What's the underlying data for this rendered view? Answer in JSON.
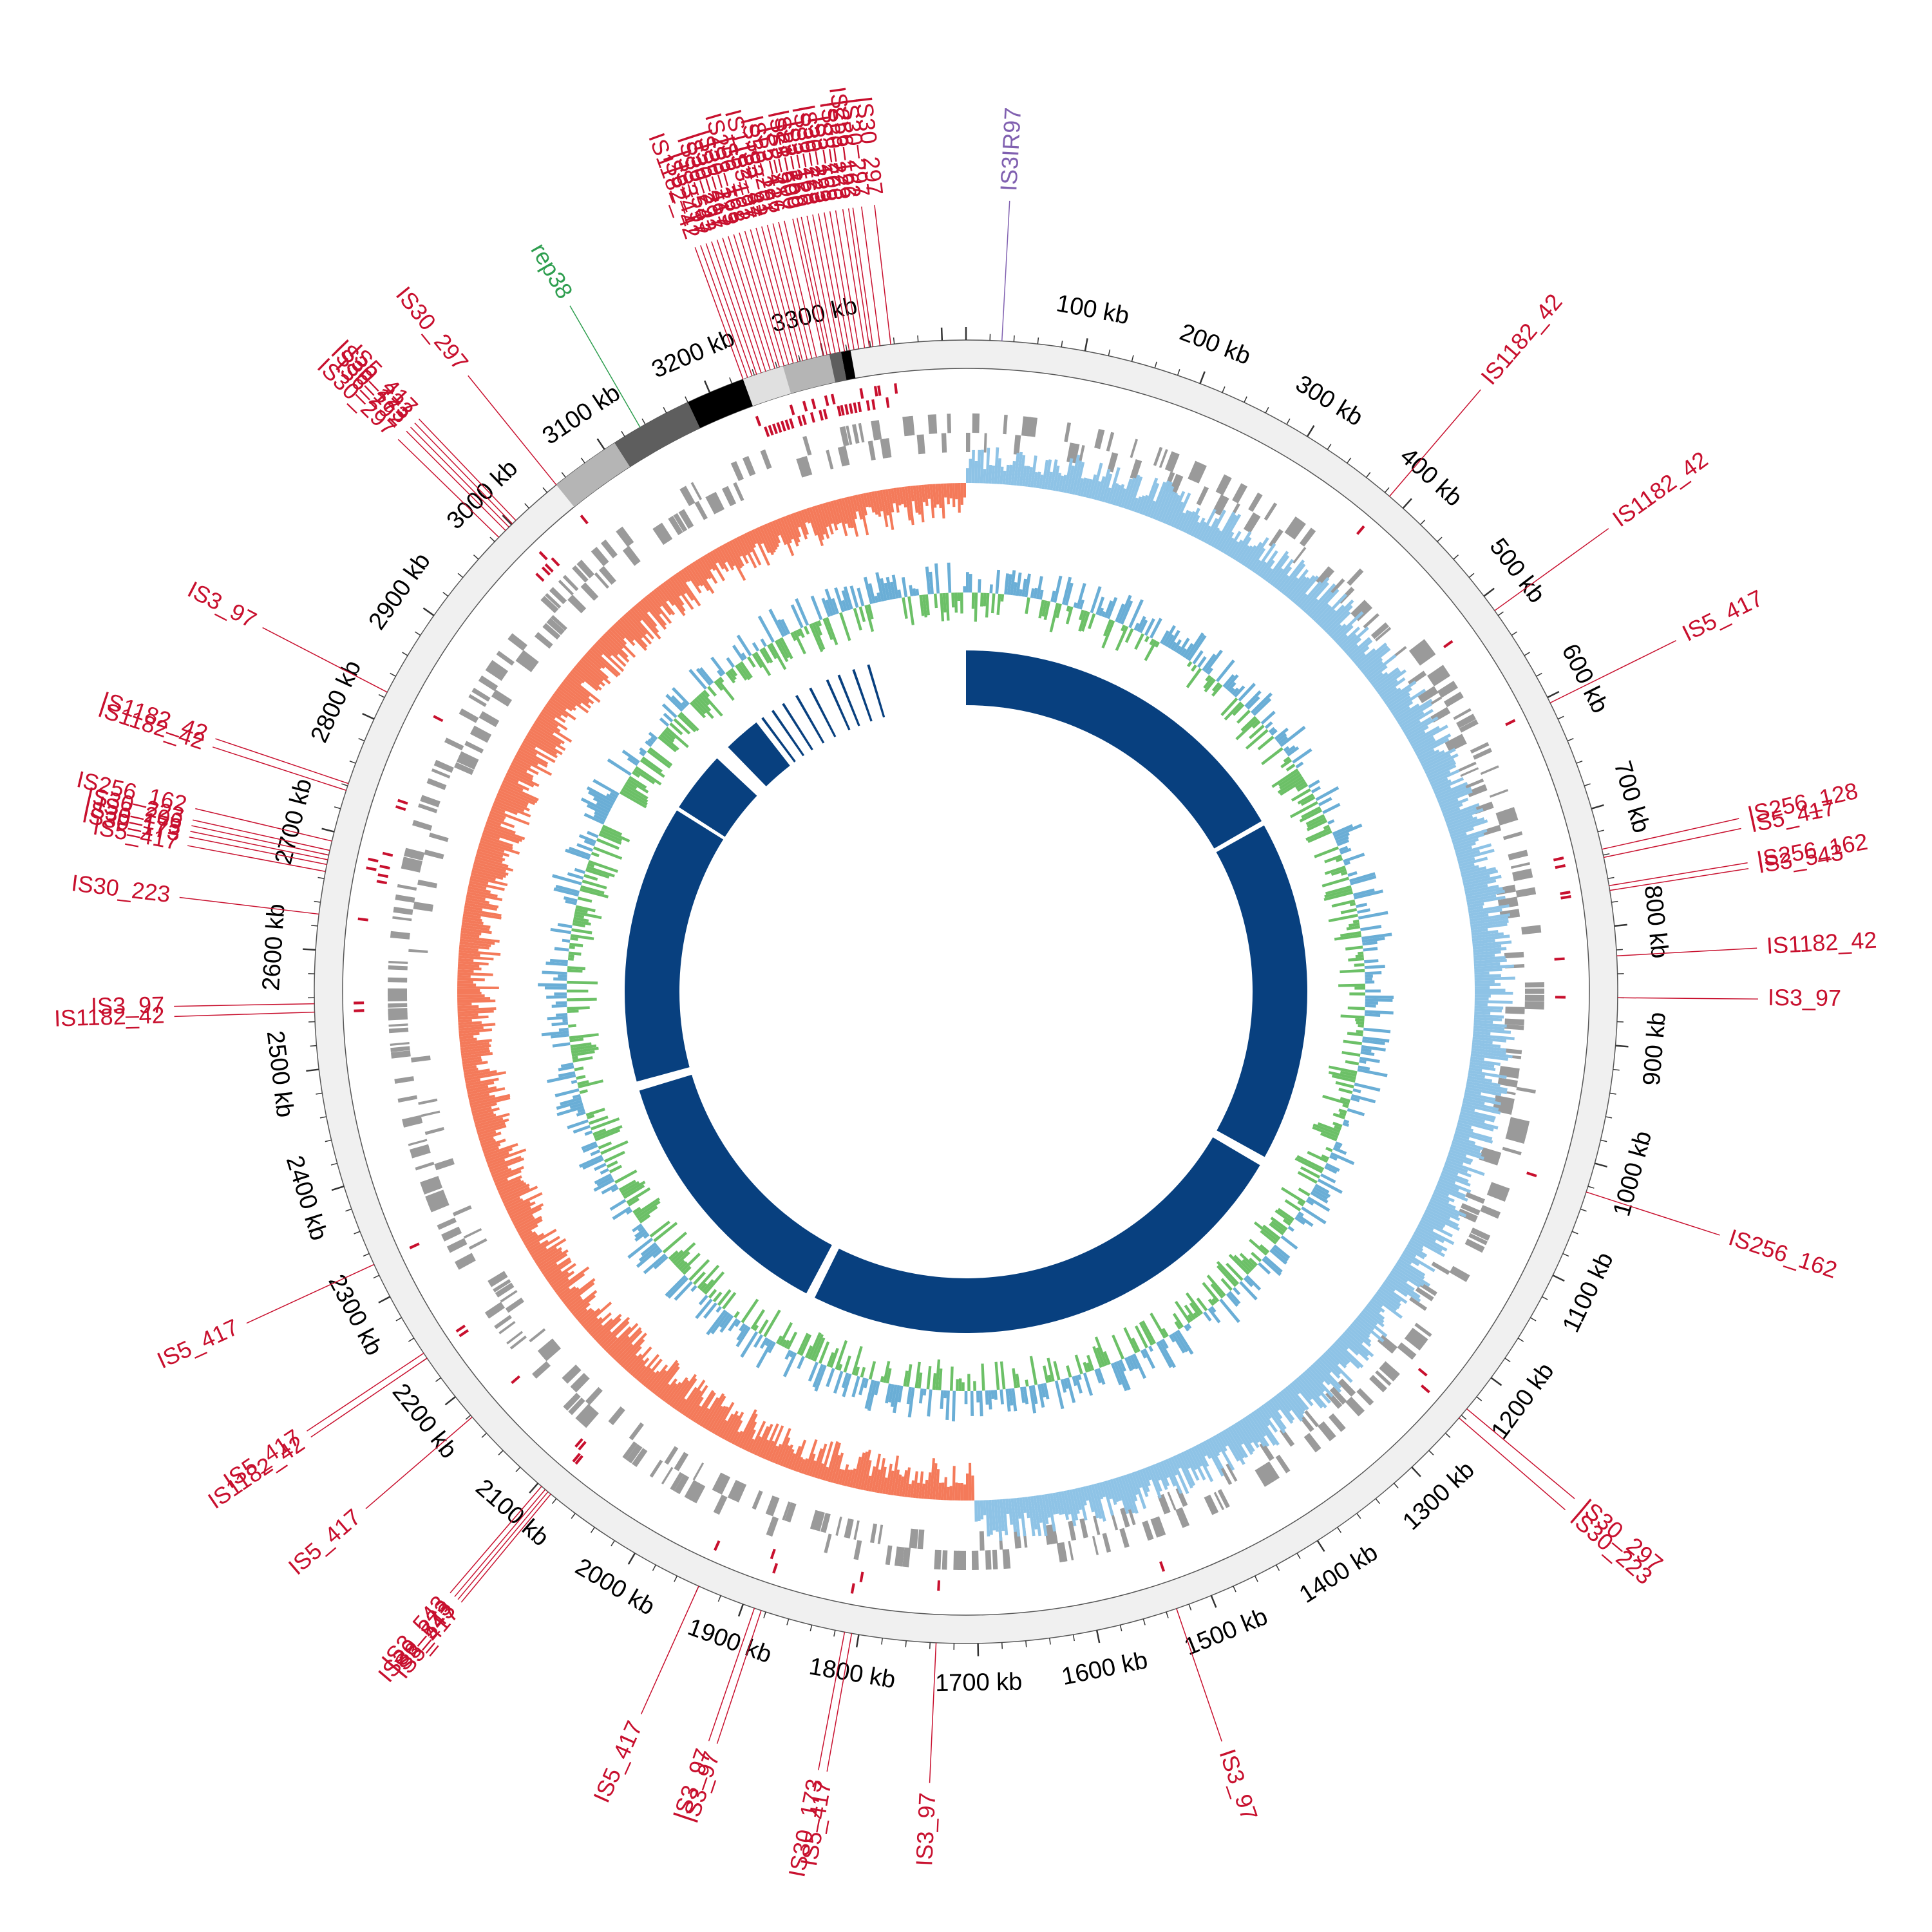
{
  "genome_kb": 3420,
  "colors": {
    "is_element": "#c8102e",
    "rep_element": "#2e9e4f",
    "rna_element": "#8060b0",
    "ring_background": "#f0f0f0",
    "cds": "#9a9a9a",
    "gc_skew_positive": "#8ec3e6",
    "gc_skew_negative": "#f47a5a",
    "gc_content_high": "#6aaed6",
    "gc_content_low": "#6cc067",
    "core_genome": "#08407f",
    "tick_text": "#000000"
  },
  "scale_ticks": [
    {
      "kb": 100,
      "label": "100 kb"
    },
    {
      "kb": 200,
      "label": "200 kb"
    },
    {
      "kb": 300,
      "label": "300 kb"
    },
    {
      "kb": 400,
      "label": "400 kb"
    },
    {
      "kb": 500,
      "label": "500 kb"
    },
    {
      "kb": 600,
      "label": "600 kb"
    },
    {
      "kb": 700,
      "label": "700 kb"
    },
    {
      "kb": 800,
      "label": "800 kb"
    },
    {
      "kb": 900,
      "label": "900 kb"
    },
    {
      "kb": 1000,
      "label": "1000 kb"
    },
    {
      "kb": 1100,
      "label": "1100 kb"
    },
    {
      "kb": 1200,
      "label": "1200 kb"
    },
    {
      "kb": 1300,
      "label": "1300 kb"
    },
    {
      "kb": 1400,
      "label": "1400 kb"
    },
    {
      "kb": 1500,
      "label": "1500 kb"
    },
    {
      "kb": 1600,
      "label": "1600 kb"
    },
    {
      "kb": 1700,
      "label": "1700 kb"
    },
    {
      "kb": 1800,
      "label": "1800 kb"
    },
    {
      "kb": 1900,
      "label": "1900 kb"
    },
    {
      "kb": 2000,
      "label": "2000 kb"
    },
    {
      "kb": 2100,
      "label": "2100 kb"
    },
    {
      "kb": 2200,
      "label": "2200 kb"
    },
    {
      "kb": 2300,
      "label": "2300 kb"
    },
    {
      "kb": 2400,
      "label": "2400 kb"
    },
    {
      "kb": 2500,
      "label": "2500 kb"
    },
    {
      "kb": 2600,
      "label": "2600 kb"
    },
    {
      "kb": 2700,
      "label": "2700 kb"
    },
    {
      "kb": 2800,
      "label": "2800 kb"
    },
    {
      "kb": 2900,
      "label": "2900 kb"
    },
    {
      "kb": 3000,
      "label": "3000 kb"
    },
    {
      "kb": 3100,
      "label": "3100 kb"
    },
    {
      "kb": 3200,
      "label": "3200 kb"
    },
    {
      "kb": 3300,
      "label": "3300 kb"
    }
  ],
  "features": [
    {
      "label": "IS30_297",
      "type": "is",
      "kb": 3357
    },
    {
      "label": "IS30_297",
      "type": "is",
      "kb": 3348
    },
    {
      "label": "IS256_162",
      "type": "is",
      "kb": 3342
    },
    {
      "label": "ISL3_126",
      "type": "is",
      "kb": 3339
    },
    {
      "label": "IS30_223",
      "type": "is",
      "kb": 3335
    },
    {
      "label": "IS3_206",
      "type": "is",
      "kb": 3330
    },
    {
      "label": "IS3_168",
      "type": "is",
      "kb": 3326
    },
    {
      "label": "IS30_223",
      "type": "is",
      "kb": 3322
    },
    {
      "label": "IS30_223",
      "type": "is",
      "kb": 3318
    },
    {
      "label": "IS3_168",
      "type": "is",
      "kb": 3314
    },
    {
      "label": "IS3_126",
      "type": "is",
      "kb": 3310
    },
    {
      "label": "ISL3_259",
      "type": "is",
      "kb": 3306
    },
    {
      "label": "IS21_500",
      "type": "is",
      "kb": 3303
    },
    {
      "label": "IS5_500",
      "type": "is",
      "kb": 3300
    },
    {
      "label": "IS3IR97",
      "type": "rna",
      "kb": 30
    },
    {
      "label": "IS5_417",
      "type": "is",
      "kb": 3294
    },
    {
      "label": "ISL3_126",
      "type": "is",
      "kb": 3290
    },
    {
      "label": "IS30_297",
      "type": "is",
      "kb": 3286
    },
    {
      "label": "IS3_61",
      "type": "is",
      "kb": 3282
    },
    {
      "label": "IS1182_42",
      "type": "is",
      "kb": 3278
    },
    {
      "label": "IS3_97",
      "type": "is",
      "kb": 3274
    },
    {
      "label": "IS5_197",
      "type": "is",
      "kb": 3270
    },
    {
      "label": "IS256_162",
      "type": "is",
      "kb": 3266
    },
    {
      "label": "IS3_168",
      "type": "is",
      "kb": 3262
    },
    {
      "label": "IS30_223",
      "type": "is",
      "kb": 3258
    },
    {
      "label": "IS5_417",
      "type": "is",
      "kb": 3254
    },
    {
      "label": "IS30_297",
      "type": "is",
      "kb": 3250
    },
    {
      "label": "IS30_297",
      "type": "is",
      "kb": 3246
    },
    {
      "label": "IS3_543",
      "type": "is",
      "kb": 3242
    },
    {
      "label": "IS3_97",
      "type": "is",
      "kb": 3238
    },
    {
      "label": "IS5_417",
      "type": "is",
      "kb": 3234
    },
    {
      "label": "IS1182_42",
      "type": "is",
      "kb": 3230
    },
    {
      "label": "IS1182_42",
      "type": "is",
      "kb": 385
    },
    {
      "label": "IS1182_42",
      "type": "is",
      "kb": 515
    },
    {
      "label": "IS5_417",
      "type": "is",
      "kb": 605
    },
    {
      "label": "IS256_128",
      "type": "is",
      "kb": 735
    },
    {
      "label": "IS5_417",
      "type": "is",
      "kb": 742
    },
    {
      "label": "IS256_162",
      "type": "is",
      "kb": 766
    },
    {
      "label": "IS3_543",
      "type": "is",
      "kb": 770
    },
    {
      "label": "IS1182_42",
      "type": "is",
      "kb": 825
    },
    {
      "label": "IS3_97",
      "type": "is",
      "kb": 860
    },
    {
      "label": "IS256_162",
      "type": "is",
      "kb": 1025
    },
    {
      "label": "IS30_297",
      "type": "is",
      "kb": 1233
    },
    {
      "label": "IS30_223",
      "type": "is",
      "kb": 1243
    },
    {
      "label": "IS3_97",
      "type": "is",
      "kb": 1531
    },
    {
      "label": "IS3_97",
      "type": "is",
      "kb": 1735
    },
    {
      "label": "IS5_417",
      "type": "is",
      "kb": 1806
    },
    {
      "label": "IS30_173",
      "type": "is",
      "kb": 1812
    },
    {
      "label": "IS3_97",
      "type": "is",
      "kb": 1884
    },
    {
      "label": "IS3_97",
      "type": "is",
      "kb": 1890
    },
    {
      "label": "IS5_417",
      "type": "is",
      "kb": 1940
    },
    {
      "label": "IS5_417",
      "type": "is",
      "kb": 2086
    },
    {
      "label": "IS3_543",
      "type": "is",
      "kb": 2089
    },
    {
      "label": "IS30_223",
      "type": "is",
      "kb": 2092
    },
    {
      "label": "IS3_543",
      "type": "is",
      "kb": 2096
    },
    {
      "label": "IS5_417",
      "type": "is",
      "kb": 2178
    },
    {
      "label": "IS1182_42",
      "type": "is",
      "kb": 2240
    },
    {
      "label": "IS5_417",
      "type": "is",
      "kb": 2245
    },
    {
      "label": "IS5_417",
      "type": "is",
      "kb": 2330
    },
    {
      "label": "IS1182_42",
      "type": "is",
      "kb": 2548
    },
    {
      "label": "IS3_97",
      "type": "is",
      "kb": 2555
    },
    {
      "label": "IS30_223",
      "type": "is",
      "kb": 2630
    },
    {
      "label": "IS5_417",
      "type": "is",
      "kb": 2666
    },
    {
      "label": "IS30_173",
      "type": "is",
      "kb": 2672
    },
    {
      "label": "IS30_173",
      "type": "is",
      "kb": 2676
    },
    {
      "label": "IS3_206",
      "type": "is",
      "kb": 2680
    },
    {
      "label": "IS30_223",
      "type": "is",
      "kb": 2684
    },
    {
      "label": "IS256_162",
      "type": "is",
      "kb": 2692
    },
    {
      "label": "IS1182_42",
      "type": "is",
      "kb": 2736
    },
    {
      "label": "IS1182_42",
      "type": "is",
      "kb": 2742
    },
    {
      "label": "IS3_97",
      "type": "is",
      "kb": 2825
    },
    {
      "label": "IS30_297",
      "type": "is",
      "kb": 2985
    },
    {
      "label": "IS6_292",
      "type": "is",
      "kb": 2993
    },
    {
      "label": "IS30_173",
      "type": "is",
      "kb": 2997
    },
    {
      "label": "IS30_223",
      "type": "is",
      "kb": 3001
    },
    {
      "label": "IS5_417",
      "type": "is",
      "kb": 3005
    },
    {
      "label": "IS30_297",
      "type": "is",
      "kb": 3050
    },
    {
      "label": "rep38",
      "type": "rep",
      "kb": 3135
    }
  ]
}
